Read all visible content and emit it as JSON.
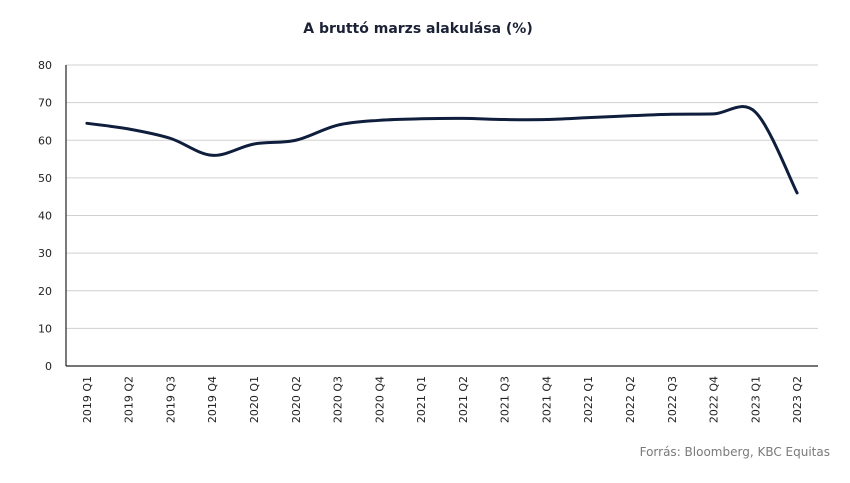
{
  "chart_data": {
    "type": "line",
    "title": "A bruttó marzs alakulása (%)",
    "xlabel": "",
    "ylabel": "",
    "ylim": [
      0,
      80
    ],
    "yticks": [
      0,
      10,
      20,
      30,
      40,
      50,
      60,
      70,
      80
    ],
    "categories": [
      "2019 Q1",
      "2019 Q2",
      "2019 Q3",
      "2019 Q4",
      "2020 Q1",
      "2020 Q2",
      "2020 Q3",
      "2020 Q4",
      "2021 Q1",
      "2021 Q2",
      "2021 Q3",
      "2021 Q4",
      "2022 Q1",
      "2022 Q2",
      "2022 Q3",
      "2022 Q4",
      "2023 Q1",
      "2023 Q2"
    ],
    "series": [
      {
        "values": [
          64.5,
          63.0,
          60.5,
          56.0,
          59.0,
          60.0,
          64.0,
          65.3,
          65.7,
          65.8,
          65.5,
          65.5,
          66.0,
          66.5,
          66.9,
          67.0,
          67.5,
          46.0
        ]
      }
    ],
    "grid": true,
    "legend": "none",
    "line_color": "#0f1e3c",
    "source": "Forrás: Bloomberg,  KBC Equitas"
  }
}
